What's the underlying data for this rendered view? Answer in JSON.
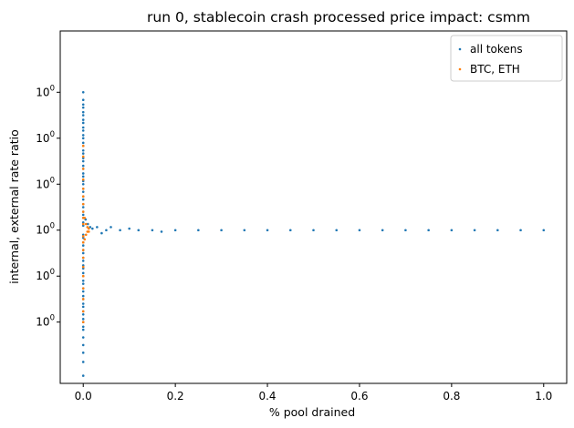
{
  "chart_data": {
    "type": "scatter",
    "title": "run 0, stablecoin crash processed price impact: csmm",
    "xlabel": "% pool drained",
    "ylabel": "internal, external rate ratio",
    "xlim": [
      -0.05,
      1.05
    ],
    "ylim": [
      0.0,
      2.3
    ],
    "x_ticks": [
      0.0,
      0.2,
      0.4,
      0.6,
      0.8,
      1.0
    ],
    "x_tick_labels": [
      "0.0",
      "0.2",
      "0.4",
      "0.6",
      "0.8",
      "1.0"
    ],
    "y_ticks": [
      0.4,
      0.7,
      1.0,
      1.3,
      1.6,
      1.9
    ],
    "y_tick_labels": [
      "10^0",
      "10^0",
      "10^0",
      "10^0",
      "10^0",
      "10^0"
    ],
    "grid": false,
    "legend_position": "top-right",
    "series": [
      {
        "name": "all tokens",
        "color": "#1f77b4",
        "points": [
          {
            "x": 0.0,
            "y": 1.9
          },
          {
            "x": 0.0,
            "y": 1.85
          },
          {
            "x": 0.0,
            "y": 1.82
          },
          {
            "x": 0.0,
            "y": 1.8
          },
          {
            "x": 0.0,
            "y": 1.77
          },
          {
            "x": 0.0,
            "y": 1.75
          },
          {
            "x": 0.0,
            "y": 1.72
          },
          {
            "x": 0.0,
            "y": 1.7
          },
          {
            "x": 0.0,
            "y": 1.67
          },
          {
            "x": 0.0,
            "y": 1.65
          },
          {
            "x": 0.0,
            "y": 1.62
          },
          {
            "x": 0.0,
            "y": 1.6
          },
          {
            "x": 0.0,
            "y": 1.57
          },
          {
            "x": 0.0,
            "y": 1.55
          },
          {
            "x": 0.0,
            "y": 1.52
          },
          {
            "x": 0.0,
            "y": 1.5
          },
          {
            "x": 0.0,
            "y": 1.47
          },
          {
            "x": 0.0,
            "y": 1.45
          },
          {
            "x": 0.0,
            "y": 1.42
          },
          {
            "x": 0.0,
            "y": 1.4
          },
          {
            "x": 0.0,
            "y": 1.37
          },
          {
            "x": 0.0,
            "y": 1.35
          },
          {
            "x": 0.0,
            "y": 1.32
          },
          {
            "x": 0.0,
            "y": 1.3
          },
          {
            "x": 0.0,
            "y": 1.27
          },
          {
            "x": 0.0,
            "y": 1.25
          },
          {
            "x": 0.0,
            "y": 1.22
          },
          {
            "x": 0.0,
            "y": 1.2
          },
          {
            "x": 0.0,
            "y": 1.17
          },
          {
            "x": 0.0,
            "y": 1.15
          },
          {
            "x": 0.0,
            "y": 1.12
          },
          {
            "x": 0.0,
            "y": 1.1
          },
          {
            "x": 0.0,
            "y": 1.08
          },
          {
            "x": 0.0,
            "y": 1.05
          },
          {
            "x": 0.0,
            "y": 1.03
          },
          {
            "x": 0.0,
            "y": 0.97
          },
          {
            "x": 0.0,
            "y": 0.95
          },
          {
            "x": 0.0,
            "y": 0.92
          },
          {
            "x": 0.0,
            "y": 0.9
          },
          {
            "x": 0.0,
            "y": 0.87
          },
          {
            "x": 0.0,
            "y": 0.85
          },
          {
            "x": 0.0,
            "y": 0.82
          },
          {
            "x": 0.0,
            "y": 0.8
          },
          {
            "x": 0.0,
            "y": 0.77
          },
          {
            "x": 0.0,
            "y": 0.75
          },
          {
            "x": 0.0,
            "y": 0.72
          },
          {
            "x": 0.0,
            "y": 0.7
          },
          {
            "x": 0.0,
            "y": 0.67
          },
          {
            "x": 0.0,
            "y": 0.65
          },
          {
            "x": 0.0,
            "y": 0.62
          },
          {
            "x": 0.0,
            "y": 0.6
          },
          {
            "x": 0.0,
            "y": 0.57
          },
          {
            "x": 0.0,
            "y": 0.55
          },
          {
            "x": 0.0,
            "y": 0.52
          },
          {
            "x": 0.0,
            "y": 0.5
          },
          {
            "x": 0.0,
            "y": 0.47
          },
          {
            "x": 0.0,
            "y": 0.45
          },
          {
            "x": 0.0,
            "y": 0.42
          },
          {
            "x": 0.0,
            "y": 0.4
          },
          {
            "x": 0.0,
            "y": 0.37
          },
          {
            "x": 0.0,
            "y": 0.35
          },
          {
            "x": 0.0,
            "y": 0.3
          },
          {
            "x": 0.0,
            "y": 0.25
          },
          {
            "x": 0.0,
            "y": 0.2
          },
          {
            "x": 0.0,
            "y": 0.14
          },
          {
            "x": 0.0,
            "y": 0.05
          },
          {
            "x": 0.005,
            "y": 1.07
          },
          {
            "x": 0.01,
            "y": 1.04
          },
          {
            "x": 0.015,
            "y": 1.02
          },
          {
            "x": 0.02,
            "y": 1.01
          },
          {
            "x": 0.03,
            "y": 1.02
          },
          {
            "x": 0.04,
            "y": 0.98
          },
          {
            "x": 0.05,
            "y": 1.0
          },
          {
            "x": 0.06,
            "y": 1.02
          },
          {
            "x": 0.08,
            "y": 1.0
          },
          {
            "x": 0.1,
            "y": 1.01
          },
          {
            "x": 0.12,
            "y": 1.0
          },
          {
            "x": 0.15,
            "y": 1.0
          },
          {
            "x": 0.17,
            "y": 0.99
          },
          {
            "x": 0.2,
            "y": 1.0
          },
          {
            "x": 0.25,
            "y": 1.0
          },
          {
            "x": 0.3,
            "y": 1.0
          },
          {
            "x": 0.35,
            "y": 1.0
          },
          {
            "x": 0.4,
            "y": 1.0
          },
          {
            "x": 0.45,
            "y": 1.0
          },
          {
            "x": 0.5,
            "y": 1.0
          },
          {
            "x": 0.55,
            "y": 1.0
          },
          {
            "x": 0.6,
            "y": 1.0
          },
          {
            "x": 0.65,
            "y": 1.0
          },
          {
            "x": 0.7,
            "y": 1.0
          },
          {
            "x": 0.75,
            "y": 1.0
          },
          {
            "x": 0.8,
            "y": 1.0
          },
          {
            "x": 0.85,
            "y": 1.0
          },
          {
            "x": 0.9,
            "y": 1.0
          },
          {
            "x": 0.95,
            "y": 1.0
          },
          {
            "x": 1.0,
            "y": 1.0
          }
        ]
      },
      {
        "name": "BTC, ETH",
        "color": "#ff7f0e",
        "points": [
          {
            "x": 0.0,
            "y": 1.55
          },
          {
            "x": 0.0,
            "y": 1.48
          },
          {
            "x": 0.0,
            "y": 1.4
          },
          {
            "x": 0.0,
            "y": 1.33
          },
          {
            "x": 0.0,
            "y": 1.27
          },
          {
            "x": 0.0,
            "y": 1.22
          },
          {
            "x": 0.0,
            "y": 1.17
          },
          {
            "x": 0.0,
            "y": 1.12
          },
          {
            "x": 0.0,
            "y": 1.08
          },
          {
            "x": 0.0,
            "y": 1.04
          },
          {
            "x": 0.0,
            "y": 0.96
          },
          {
            "x": 0.0,
            "y": 0.92
          },
          {
            "x": 0.0,
            "y": 0.87
          },
          {
            "x": 0.0,
            "y": 0.82
          },
          {
            "x": 0.0,
            "y": 0.76
          },
          {
            "x": 0.0,
            "y": 0.7
          },
          {
            "x": 0.0,
            "y": 0.62
          },
          {
            "x": 0.0,
            "y": 0.55
          },
          {
            "x": 0.0,
            "y": 0.47
          },
          {
            "x": 0.0,
            "y": 0.4
          },
          {
            "x": 0.003,
            "y": 1.08
          },
          {
            "x": 0.006,
            "y": 1.04
          },
          {
            "x": 0.009,
            "y": 1.02
          },
          {
            "x": 0.012,
            "y": 1.01
          },
          {
            "x": 0.003,
            "y": 0.94
          },
          {
            "x": 0.006,
            "y": 0.97
          },
          {
            "x": 0.009,
            "y": 0.99
          },
          {
            "x": 0.012,
            "y": 0.99
          }
        ]
      }
    ]
  }
}
